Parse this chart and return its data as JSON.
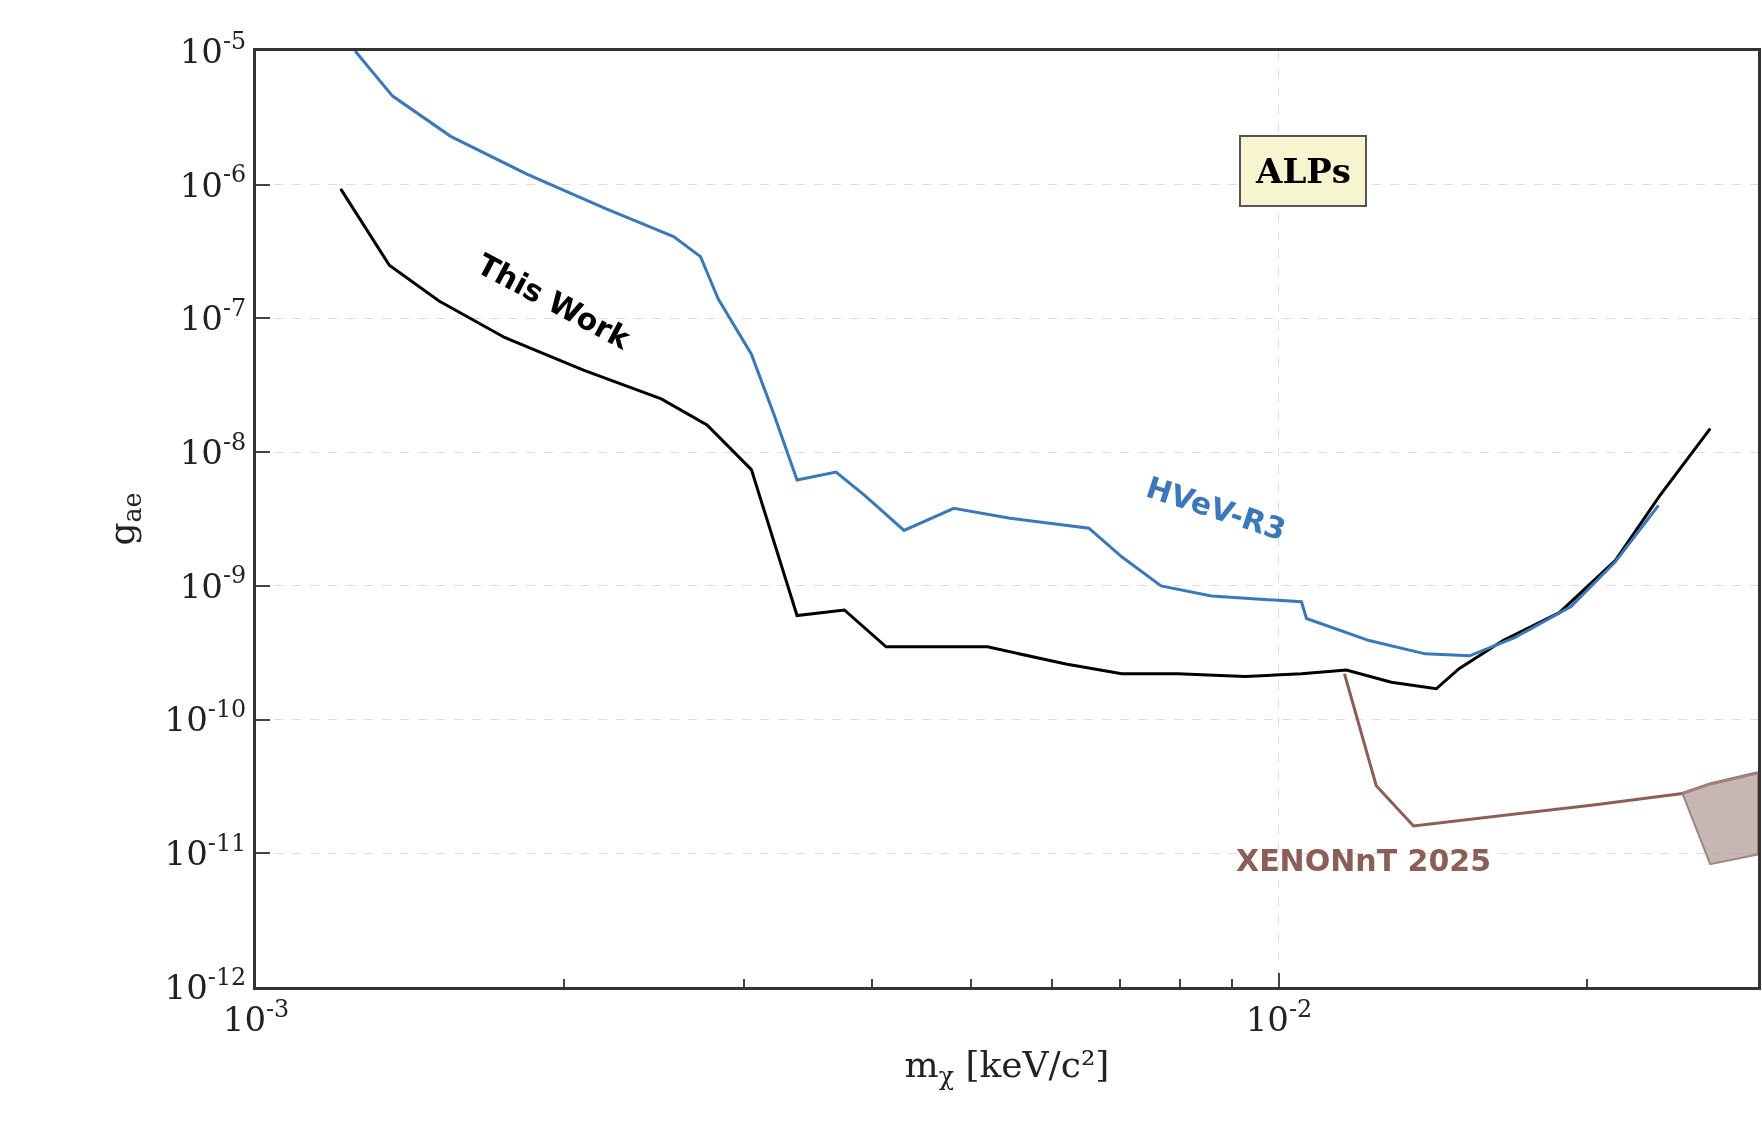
{
  "chart_data": {
    "type": "line",
    "xlabel": "m$_{χ}$ [keV/c²]",
    "ylabel": "g$_{ae}$",
    "log": "xy",
    "grid": true,
    "legend": false,
    "xlim": [
      0.001,
      0.0294
    ],
    "ylim": [
      1e-12,
      1e-05
    ],
    "xticks": [
      {
        "value": 0.001,
        "label": "10$^{-3}$"
      },
      {
        "value": 0.002,
        "label": null
      },
      {
        "value": 0.003,
        "label": null
      },
      {
        "value": 0.004,
        "label": null
      },
      {
        "value": 0.005,
        "label": null
      },
      {
        "value": 0.006,
        "label": null
      },
      {
        "value": 0.007,
        "label": null
      },
      {
        "value": 0.008,
        "label": null
      },
      {
        "value": 0.009,
        "label": null
      },
      {
        "value": 0.01,
        "label": "10$^{-2}$"
      },
      {
        "value": 0.02,
        "label": null
      }
    ],
    "yticks": [
      {
        "value": 1e-12,
        "label": "10$^{-12}$"
      },
      {
        "value": 1e-11,
        "label": "10$^{-11}$"
      },
      {
        "value": 1e-10,
        "label": "10$^{-10}$"
      },
      {
        "value": 1e-09,
        "label": "10$^{-9}$"
      },
      {
        "value": 1e-08,
        "label": "10$^{-8}$"
      },
      {
        "value": 1e-07,
        "label": "10$^{-7}$"
      },
      {
        "value": 1e-06,
        "label": "10$^{-6}$"
      },
      {
        "value": 1e-05,
        "label": "10$^{-5}$"
      }
    ],
    "annotations": [
      "ALPs"
    ],
    "series": [
      {
        "name": "This Work",
        "color": "#000000",
        "x": [
          0.00121,
          0.00135,
          0.00151,
          0.00175,
          0.00209,
          0.00249,
          0.00276,
          0.00305,
          0.00338,
          0.00376,
          0.00413,
          0.00481,
          0.00519,
          0.00619,
          0.00702,
          0.00796,
          0.00927,
          0.01052,
          0.01164,
          0.01288,
          0.01425,
          0.015,
          0.01656,
          0.0188,
          0.02133,
          0.0236,
          0.0264
        ],
        "values": [
          9.3e-07,
          2.5e-07,
          1.35e-07,
          7.2e-08,
          4.1e-08,
          2.5e-08,
          1.6e-08,
          7.4e-09,
          6e-10,
          6.6e-10,
          3.5e-10,
          3.5e-10,
          3.5e-10,
          2.6e-10,
          2.2e-10,
          2.2e-10,
          2.1e-10,
          2.2e-10,
          2.35e-10,
          1.9e-10,
          1.7e-10,
          2.4e-10,
          3.9e-10,
          6.3e-10,
          1.55e-09,
          4.8e-09,
          1.5e-08
        ]
      },
      {
        "name": "HVeV-R3",
        "color": "#3a78b8",
        "x": [
          0.00125,
          0.00136,
          0.00155,
          0.00184,
          0.0022,
          0.00256,
          0.00272,
          0.00283,
          0.00305,
          0.00321,
          0.00338,
          0.00369,
          0.00393,
          0.0043,
          0.00481,
          0.00546,
          0.00652,
          0.00702,
          0.00767,
          0.00859,
          0.01052,
          0.01064,
          0.01225,
          0.0139,
          0.01536,
          0.017,
          0.0193,
          0.0213,
          0.0235
        ],
        "values": [
          1e-05,
          4.6e-06,
          2.3e-06,
          1.2e-06,
          6.6e-07,
          4.1e-07,
          2.9e-07,
          1.4e-07,
          5.4e-08,
          1.9e-08,
          6.2e-09,
          7.1e-09,
          4.8e-09,
          2.6e-09,
          3.8e-09,
          3.2e-09,
          2.7e-09,
          1.65e-09,
          1e-09,
          8.4e-10,
          7.6e-10,
          5.7e-10,
          3.9e-10,
          3.1e-10,
          3e-10,
          4.1e-10,
          7e-10,
          1.5e-09,
          4e-09
        ]
      },
      {
        "name": "XENONnT 2025",
        "color": "#8b5e57",
        "x": [
          0.01159,
          0.01245,
          0.01354,
          0.0203,
          0.0248,
          0.0264,
          0.0294
        ],
        "values": [
          2.2e-10,
          3.2e-11,
          1.6e-11,
          2.3e-11,
          2.8e-11,
          3.3e-11,
          4e-11
        ]
      },
      {
        "type": "area",
        "color": "#a08582",
        "x": [
          0.0248,
          0.0264,
          0.0294,
          0.0294,
          0.0264,
          0.0248
        ],
        "values": [
          2.8e-11,
          8.3e-12,
          9.8e-12,
          4e-11,
          3.3e-11,
          2.8e-11
        ]
      }
    ]
  }
}
